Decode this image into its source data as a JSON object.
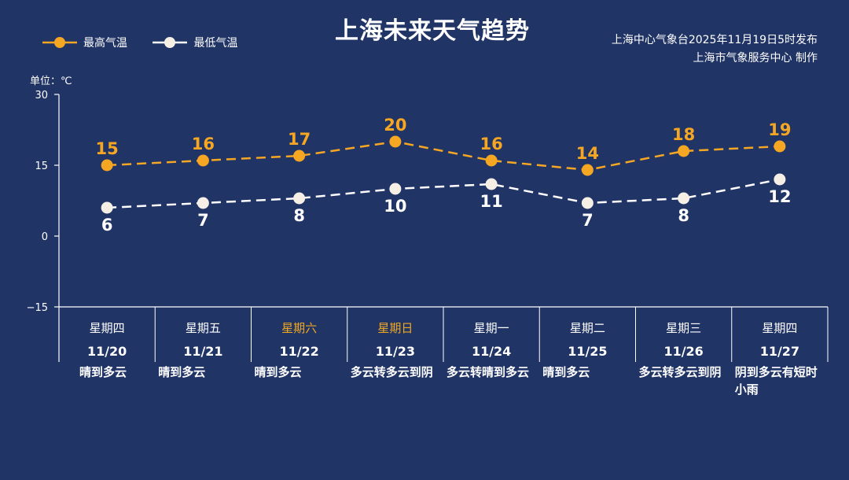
{
  "title": "上海未来天气趋势",
  "source_line1": "上海中心气象台2025年11月19日5时发布",
  "source_line2": "上海市气象服务中心  制作",
  "unit_label": "单位：℃",
  "legend": {
    "high": "最高气温",
    "low": "最低气温"
  },
  "colors": {
    "background": "#213466",
    "high": "#f5a623",
    "low": "#ffffff",
    "weekend": "#f0a820"
  },
  "chart_data": {
    "type": "line",
    "ylim": [
      -15,
      30
    ],
    "yticks": [
      30,
      15,
      0,
      -15
    ],
    "ytick_labels": [
      "30",
      "15",
      "0",
      "−15"
    ],
    "categories": [
      "11/20",
      "11/21",
      "11/22",
      "11/23",
      "11/24",
      "11/25",
      "11/26",
      "11/27"
    ],
    "weekdays": [
      "星期四",
      "星期五",
      "星期六",
      "星期日",
      "星期一",
      "星期二",
      "星期三",
      "星期四"
    ],
    "weekend": [
      false,
      false,
      true,
      true,
      false,
      false,
      false,
      false
    ],
    "weather": [
      "晴到多云",
      "晴到多云",
      "晴到多云",
      "多云转多云到阴",
      "多云转晴到多云",
      "晴到多云",
      "多云转多云到阴",
      "阴到多云有短时小雨"
    ],
    "series": [
      {
        "name": "最高气温",
        "values": [
          15,
          16,
          17,
          20,
          16,
          14,
          18,
          19
        ]
      },
      {
        "name": "最低气温",
        "values": [
          6,
          7,
          8,
          10,
          11,
          7,
          8,
          12
        ]
      }
    ]
  }
}
